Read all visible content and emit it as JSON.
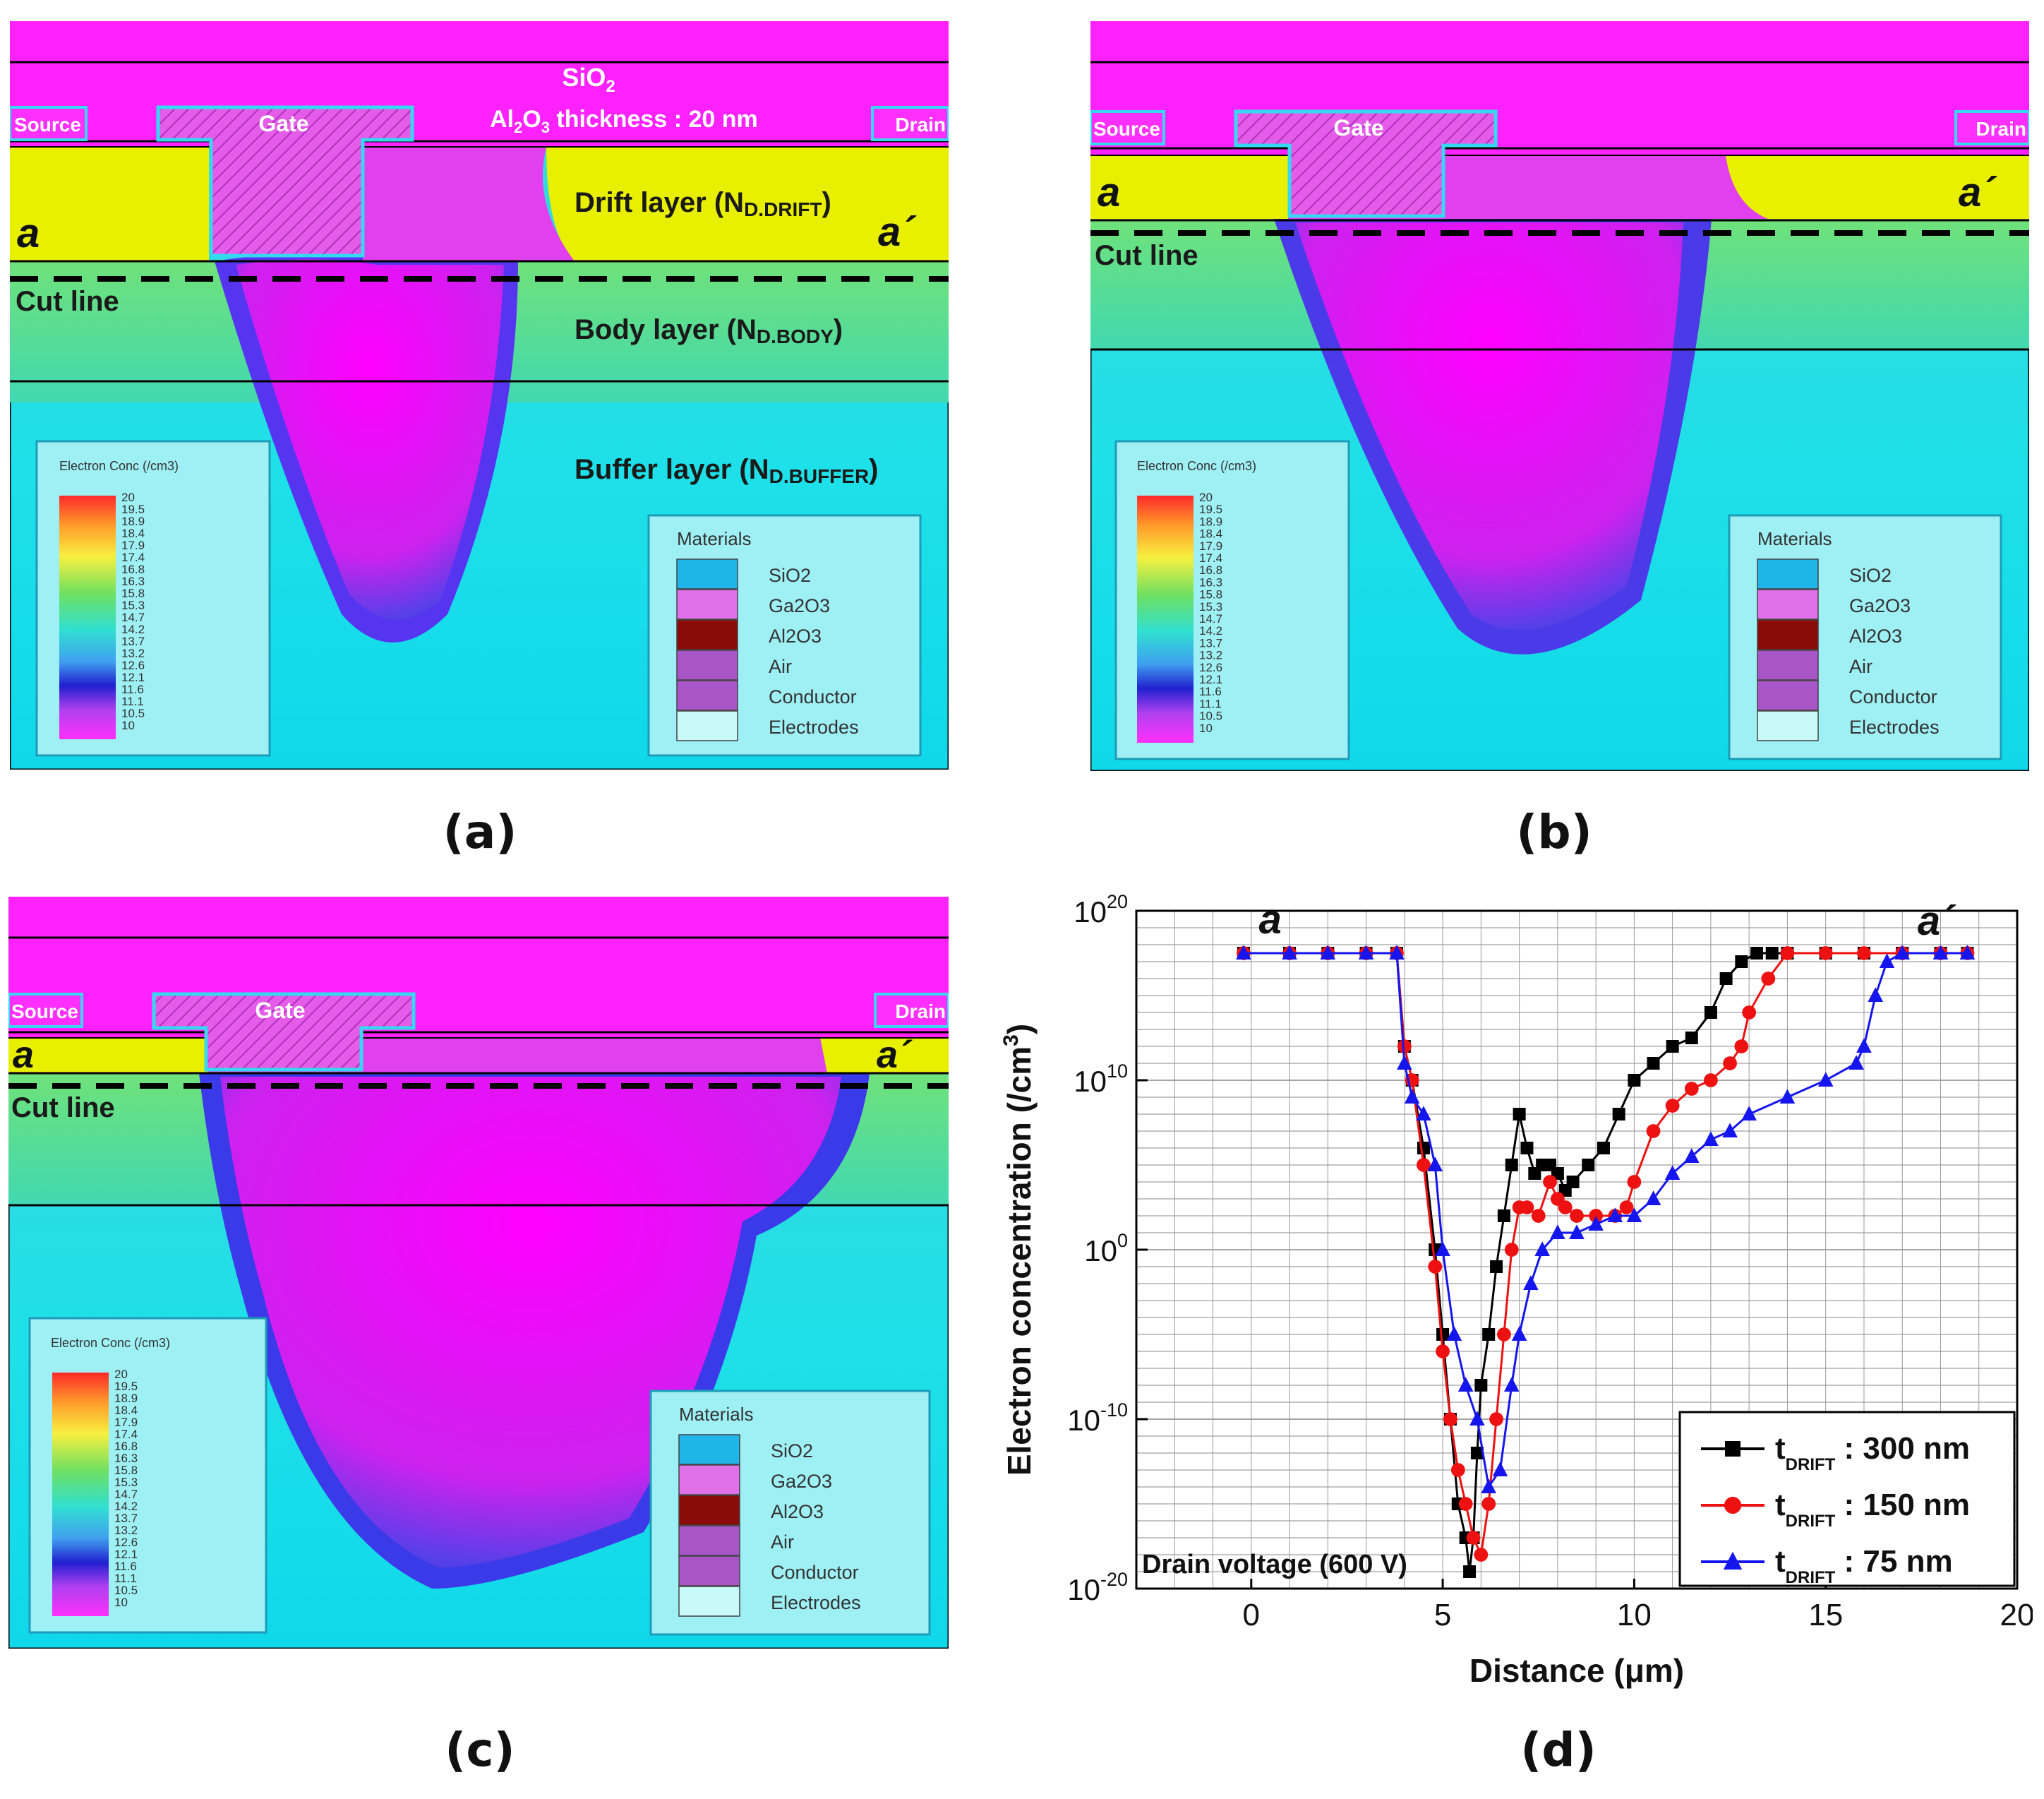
{
  "captions": {
    "a": "(a)",
    "b": "(b)",
    "c": "(c)",
    "d": "(d)"
  },
  "sim_labels": {
    "sio2": "SiO",
    "sio2_sub": "2",
    "al2o3_pre": "Al",
    "al2o3_sub1": "2",
    "al2o3_mid": "O",
    "al2o3_sub2": "3",
    "al2o3_post": " thickness : 20 nm",
    "source": "Source",
    "gate": "Gate",
    "drain": "Drain",
    "a": "a",
    "a_prime": "a´",
    "cut_line": "Cut line",
    "drift_layer": "Drift  layer (N",
    "drift_sub": "D.DRIFT",
    "body_layer": "Body layer (N",
    "body_sub": "D.BODY",
    "buffer_layer": "Buffer layer (N",
    "buffer_sub": "D.BUFFER",
    "close_paren": ")"
  },
  "colorbar": {
    "title": "Electron Conc (/cm3)",
    "ticks": [
      "20",
      "19.5",
      "18.9",
      "18.4",
      "17.9",
      "17.4",
      "16.8",
      "16.3",
      "15.8",
      "15.3",
      "14.7",
      "14.2",
      "13.7",
      "13.2",
      "12.6",
      "12.1",
      "11.6",
      "11.1",
      "10.5",
      "10"
    ]
  },
  "materials": {
    "title": "Materials",
    "items": [
      {
        "name": "SiO2",
        "color": "#1fb5e8"
      },
      {
        "name": "Ga2O3",
        "color": "#e070e8"
      },
      {
        "name": "Al2O3",
        "color": "#8b0a0a"
      },
      {
        "name": "Air",
        "color": "#a855c8"
      },
      {
        "name": "Conductor",
        "color": "#a855c8"
      },
      {
        "name": "Electrodes",
        "color": "#c8f8f8"
      }
    ]
  },
  "chart_data": {
    "type": "line",
    "xlabel": "Distance (μm)",
    "ylabel": "Electron concentration (/cm3)",
    "xlim": [
      -3,
      20
    ],
    "ylim": [
      -20,
      20
    ],
    "yscale": "log10",
    "xticks": [
      0,
      5,
      10,
      15,
      20
    ],
    "yticks": [
      {
        "value": -20,
        "base": "10",
        "exp": "-20"
      },
      {
        "value": -10,
        "base": "10",
        "exp": "-10"
      },
      {
        "value": 0,
        "base": "10",
        "exp": "0"
      },
      {
        "value": 10,
        "base": "10",
        "exp": "10"
      },
      {
        "value": 20,
        "base": "10",
        "exp": "20"
      }
    ],
    "grid": true,
    "legend_position": "bottom-right",
    "annotations": {
      "left": "a",
      "right": "a´",
      "note": "Drain voltage (600 V)"
    },
    "series": [
      {
        "name": "t_DRIFT : 300 nm",
        "label_main": "t",
        "label_sub": "DRIFT",
        "label_tail": " : 300 nm",
        "color": "#000000",
        "marker": "square",
        "x": [
          -0.2,
          1,
          2,
          3,
          3.8,
          4.0,
          4.2,
          4.5,
          4.8,
          5.0,
          5.2,
          5.4,
          5.6,
          5.7,
          5.8,
          5.9,
          6.0,
          6.2,
          6.4,
          6.6,
          6.8,
          7.0,
          7.2,
          7.4,
          7.6,
          7.8,
          8.0,
          8.2,
          8.4,
          8.8,
          9.2,
          9.6,
          10.0,
          10.5,
          11.0,
          11.5,
          12.0,
          12.4,
          12.8,
          13.2,
          13.6,
          14.0,
          15.0,
          16.0,
          17.0,
          18.0,
          18.7
        ],
        "y": [
          17.5,
          17.5,
          17.5,
          17.5,
          17.5,
          12,
          10,
          6,
          0,
          -5,
          -10,
          -15,
          -17,
          -19,
          -17,
          -12,
          -8,
          -5,
          -1,
          2,
          5,
          8,
          6,
          4.5,
          5,
          5,
          4.5,
          3.5,
          4,
          5,
          6,
          8,
          10,
          11,
          12,
          12.5,
          14,
          16,
          17,
          17.5,
          17.5,
          17.5,
          17.5,
          17.5,
          17.5,
          17.5,
          17.5
        ]
      },
      {
        "name": "t_DRIFT : 150 nm",
        "label_main": "t",
        "label_sub": "DRIFT",
        "label_tail": " : 150 nm",
        "color": "#ee1111",
        "marker": "circle",
        "x": [
          -0.2,
          1,
          2,
          3,
          3.8,
          4.0,
          4.2,
          4.5,
          4.8,
          5.0,
          5.2,
          5.4,
          5.6,
          5.8,
          6.0,
          6.2,
          6.4,
          6.6,
          6.8,
          7.0,
          7.2,
          7.5,
          7.8,
          8.0,
          8.2,
          8.5,
          9.0,
          9.5,
          9.8,
          10.0,
          10.5,
          11.0,
          11.5,
          12.0,
          12.5,
          12.8,
          13.0,
          13.5,
          14.0,
          15.0,
          16.0,
          17.0,
          18.0,
          18.7
        ],
        "y": [
          17.5,
          17.5,
          17.5,
          17.5,
          17.5,
          12,
          10,
          5,
          -1,
          -6,
          -10,
          -13,
          -15,
          -17,
          -18,
          -15,
          -10,
          -5,
          0,
          2.5,
          2.5,
          2,
          4,
          3,
          2.5,
          2,
          2,
          2,
          2.5,
          4,
          7,
          8.5,
          9.5,
          10,
          11,
          12,
          14,
          16,
          17.5,
          17.5,
          17.5,
          17.5,
          17.5,
          17.5
        ]
      },
      {
        "name": "t_DRIFT : 75 nm",
        "label_main": "t",
        "label_sub": "DRIFT",
        "label_tail": " : 75 nm",
        "color": "#1515ee",
        "marker": "triangle",
        "x": [
          -0.2,
          1,
          2,
          3,
          3.8,
          4.0,
          4.2,
          4.5,
          4.8,
          5.0,
          5.3,
          5.6,
          5.9,
          6.2,
          6.5,
          6.8,
          7.0,
          7.3,
          7.6,
          8.0,
          8.5,
          9.0,
          9.5,
          10.0,
          10.5,
          11.0,
          11.5,
          12.0,
          12.5,
          13.0,
          14.0,
          15.0,
          15.8,
          16.0,
          16.3,
          16.6,
          17.0,
          18.0,
          18.7
        ],
        "y": [
          17.5,
          17.5,
          17.5,
          17.5,
          17.5,
          11,
          9,
          8,
          5,
          0,
          -5,
          -8,
          -10,
          -14,
          -13,
          -8,
          -5,
          -2,
          0,
          1,
          1,
          1.5,
          2,
          2,
          3,
          4.5,
          5.5,
          6.5,
          7,
          8,
          9,
          10,
          11,
          12,
          15,
          17,
          17.5,
          17.5,
          17.5
        ]
      }
    ]
  }
}
